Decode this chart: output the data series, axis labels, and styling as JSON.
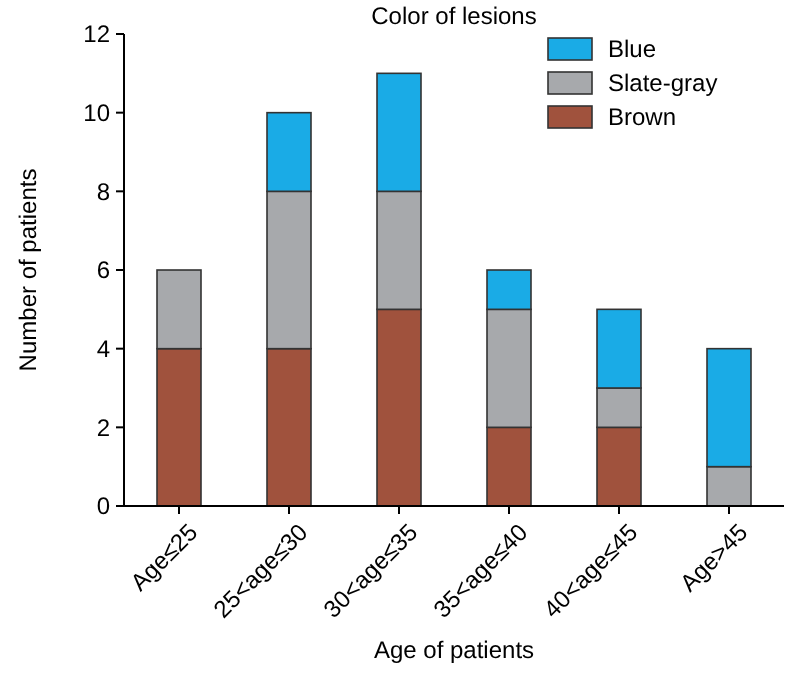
{
  "chart_data": {
    "type": "bar",
    "title": "Color of lesions",
    "xlabel": "Age of patients",
    "ylabel": "Number of patients",
    "categories": [
      "Age≤25",
      "25<age≤30",
      "30<age≤35",
      "35<age≤40",
      "40<age≤45",
      "Age>45"
    ],
    "stacked": true,
    "ylim": [
      0,
      12
    ],
    "yticks": [
      0,
      2,
      4,
      6,
      8,
      10,
      12
    ],
    "grid": false,
    "legend": "top right",
    "series": [
      {
        "name": "Brown",
        "color": "#a0523d",
        "values": [
          4,
          4,
          5,
          2,
          2,
          0
        ]
      },
      {
        "name": "Slate-gray",
        "color": "#a7a9ac",
        "values": [
          2,
          4,
          3,
          3,
          1,
          1
        ]
      },
      {
        "name": "Blue",
        "color": "#1aabe6",
        "values": [
          0,
          2,
          3,
          1,
          2,
          3
        ]
      }
    ]
  }
}
